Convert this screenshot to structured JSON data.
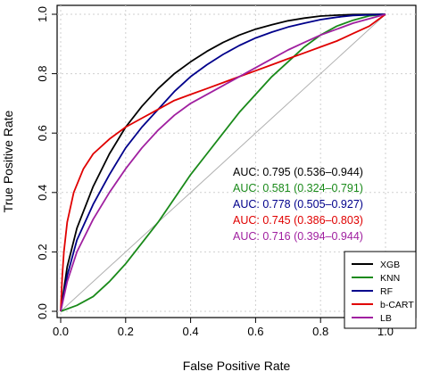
{
  "chart_data": {
    "type": "line",
    "title": "",
    "xlabel": "False Positive Rate",
    "ylabel": "True Positive Rate",
    "xlim": [
      0,
      1
    ],
    "ylim": [
      0,
      1
    ],
    "x_ticks": [
      0.0,
      0.2,
      0.4,
      0.6,
      0.8,
      1.0
    ],
    "y_ticks": [
      0.0,
      0.2,
      0.4,
      0.6,
      0.8,
      1.0
    ],
    "x_tick_labels": [
      "0.0",
      "0.2",
      "0.4",
      "0.6",
      "0.8",
      "1.0"
    ],
    "y_tick_labels": [
      "0.0",
      "0.2",
      "0.4",
      "0.6",
      "0.8",
      "1.0"
    ],
    "grid": true,
    "diagonal_reference": true,
    "legend_position": "bottom-right",
    "series": [
      {
        "name": "XGB",
        "color": "#000000",
        "auc_label": "AUC: 0.795 (0.536–0.944)",
        "points": [
          [
            0,
            0
          ],
          [
            0.02,
            0.15
          ],
          [
            0.05,
            0.28
          ],
          [
            0.1,
            0.42
          ],
          [
            0.15,
            0.53
          ],
          [
            0.2,
            0.62
          ],
          [
            0.25,
            0.69
          ],
          [
            0.3,
            0.75
          ],
          [
            0.35,
            0.8
          ],
          [
            0.4,
            0.84
          ],
          [
            0.45,
            0.875
          ],
          [
            0.5,
            0.905
          ],
          [
            0.55,
            0.93
          ],
          [
            0.6,
            0.95
          ],
          [
            0.65,
            0.965
          ],
          [
            0.7,
            0.978
          ],
          [
            0.75,
            0.987
          ],
          [
            0.8,
            0.994
          ],
          [
            0.85,
            0.997
          ],
          [
            0.9,
            0.999
          ],
          [
            1,
            1
          ]
        ]
      },
      {
        "name": "KNN",
        "color": "#1a8a1a",
        "auc_label": "AUC: 0.581 (0.324–0.791)",
        "points": [
          [
            0,
            0
          ],
          [
            0.05,
            0.02
          ],
          [
            0.1,
            0.05
          ],
          [
            0.15,
            0.1
          ],
          [
            0.2,
            0.16
          ],
          [
            0.25,
            0.23
          ],
          [
            0.3,
            0.3
          ],
          [
            0.35,
            0.38
          ],
          [
            0.4,
            0.46
          ],
          [
            0.45,
            0.53
          ],
          [
            0.5,
            0.6
          ],
          [
            0.55,
            0.67
          ],
          [
            0.6,
            0.73
          ],
          [
            0.65,
            0.79
          ],
          [
            0.7,
            0.84
          ],
          [
            0.75,
            0.89
          ],
          [
            0.8,
            0.93
          ],
          [
            0.85,
            0.96
          ],
          [
            0.9,
            0.98
          ],
          [
            0.95,
            0.995
          ],
          [
            1,
            1
          ]
        ]
      },
      {
        "name": "RF",
        "color": "#00008b",
        "auc_label": "AUC: 0.778 (0.505–0.927)",
        "points": [
          [
            0,
            0
          ],
          [
            0.02,
            0.12
          ],
          [
            0.05,
            0.24
          ],
          [
            0.1,
            0.36
          ],
          [
            0.15,
            0.46
          ],
          [
            0.2,
            0.55
          ],
          [
            0.25,
            0.62
          ],
          [
            0.3,
            0.68
          ],
          [
            0.35,
            0.74
          ],
          [
            0.4,
            0.79
          ],
          [
            0.45,
            0.83
          ],
          [
            0.5,
            0.865
          ],
          [
            0.55,
            0.895
          ],
          [
            0.6,
            0.92
          ],
          [
            0.65,
            0.94
          ],
          [
            0.7,
            0.957
          ],
          [
            0.75,
            0.97
          ],
          [
            0.8,
            0.982
          ],
          [
            0.85,
            0.99
          ],
          [
            0.9,
            0.996
          ],
          [
            1,
            1
          ]
        ]
      },
      {
        "name": "b-CART",
        "color": "#e00000",
        "auc_label": "AUC: 0.745 (0.386–0.803)",
        "points": [
          [
            0,
            0
          ],
          [
            0.005,
            0.12
          ],
          [
            0.01,
            0.2
          ],
          [
            0.02,
            0.3
          ],
          [
            0.04,
            0.4
          ],
          [
            0.07,
            0.48
          ],
          [
            0.1,
            0.53
          ],
          [
            0.15,
            0.58
          ],
          [
            0.2,
            0.62
          ],
          [
            0.25,
            0.65
          ],
          [
            0.3,
            0.68
          ],
          [
            0.35,
            0.71
          ],
          [
            0.4,
            0.73
          ],
          [
            0.45,
            0.75
          ],
          [
            0.5,
            0.77
          ],
          [
            0.55,
            0.79
          ],
          [
            0.6,
            0.81
          ],
          [
            0.65,
            0.83
          ],
          [
            0.7,
            0.85
          ],
          [
            0.75,
            0.87
          ],
          [
            0.8,
            0.89
          ],
          [
            0.85,
            0.91
          ],
          [
            0.9,
            0.935
          ],
          [
            0.95,
            0.96
          ],
          [
            1,
            1
          ]
        ]
      },
      {
        "name": "LB",
        "color": "#a020a0",
        "auc_label": "AUC: 0.716 (0.394–0.944)",
        "points": [
          [
            0,
            0
          ],
          [
            0.02,
            0.1
          ],
          [
            0.05,
            0.2
          ],
          [
            0.1,
            0.31
          ],
          [
            0.15,
            0.4
          ],
          [
            0.2,
            0.48
          ],
          [
            0.25,
            0.55
          ],
          [
            0.3,
            0.61
          ],
          [
            0.35,
            0.66
          ],
          [
            0.4,
            0.7
          ],
          [
            0.45,
            0.73
          ],
          [
            0.5,
            0.76
          ],
          [
            0.55,
            0.79
          ],
          [
            0.6,
            0.82
          ],
          [
            0.65,
            0.85
          ],
          [
            0.7,
            0.88
          ],
          [
            0.75,
            0.905
          ],
          [
            0.8,
            0.93
          ],
          [
            0.85,
            0.95
          ],
          [
            0.9,
            0.97
          ],
          [
            0.95,
            0.985
          ],
          [
            1,
            1
          ]
        ]
      }
    ]
  }
}
